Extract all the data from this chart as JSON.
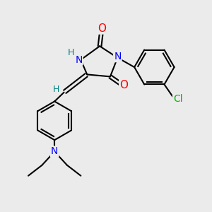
{
  "background_color": "#ebebeb",
  "bond_color": "#000000",
  "atom_colors": {
    "O": "#ff0000",
    "N": "#0000ff",
    "Cl": "#00bb00",
    "H": "#008080",
    "C": "#000000"
  },
  "font_size_atoms": 10,
  "figsize": [
    3.0,
    3.0
  ],
  "dpi": 100
}
